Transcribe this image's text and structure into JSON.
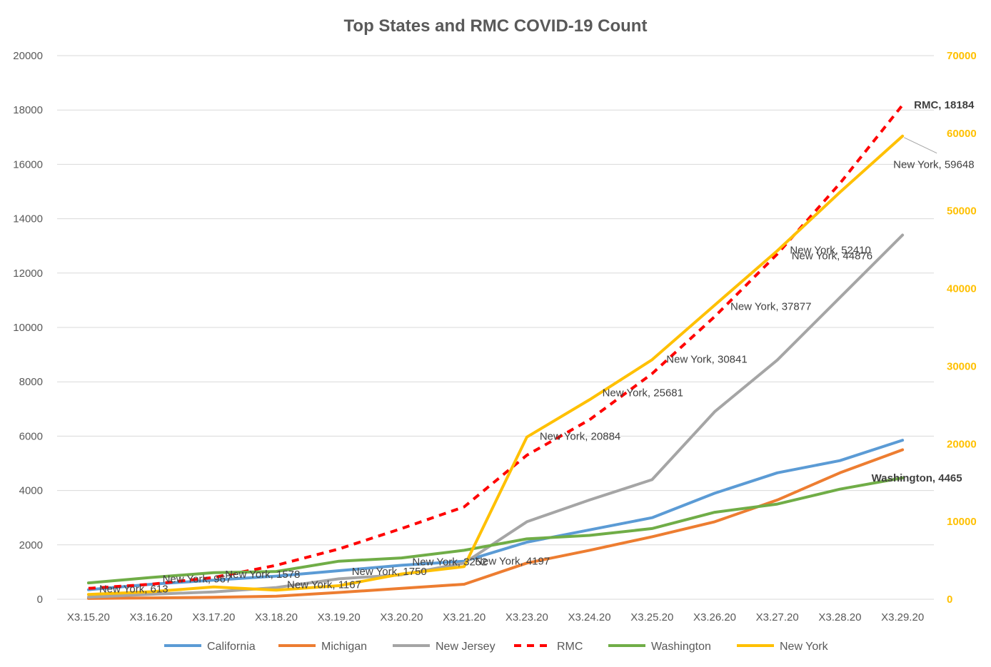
{
  "chart_data": {
    "type": "line",
    "title": "Top States and RMC COVID-19 Count",
    "categories": [
      "X3.15.20",
      "X3.16.20",
      "X3.17.20",
      "X3.18.20",
      "X3.19.20",
      "X3.20.20",
      "X3.21.20",
      "X3.23.20",
      "X3.24.20",
      "X3.25.20",
      "X3.26.20",
      "X3.27.20",
      "X3.28.20",
      "X3.29.20"
    ],
    "y_left": {
      "min": 0,
      "max": 20000,
      "step": 2000,
      "ticks": [
        "0",
        "2000",
        "4000",
        "6000",
        "8000",
        "10000",
        "12000",
        "14000",
        "16000",
        "18000",
        "20000"
      ]
    },
    "y_right": {
      "min": 0,
      "max": 70000,
      "step": 10000,
      "ticks": [
        "0",
        "10000",
        "20000",
        "30000",
        "40000",
        "50000",
        "60000",
        "70000"
      ],
      "color": "#FFC000"
    },
    "grid": true,
    "legend_position": "bottom",
    "series": [
      {
        "name": "California",
        "color": "#5B9BD5",
        "dash": false,
        "axis": "left",
        "values": [
          350,
          550,
          700,
          850,
          1050,
          1250,
          1400,
          2100,
          2550,
          3000,
          3900,
          4650,
          5100,
          5850
        ]
      },
      {
        "name": "Michigan",
        "color": "#ED7D31",
        "dash": false,
        "axis": "left",
        "values": [
          30,
          50,
          70,
          110,
          250,
          400,
          550,
          1330,
          1800,
          2300,
          2850,
          3650,
          4650,
          5500
        ]
      },
      {
        "name": "New Jersey",
        "color": "#A5A5A5",
        "dash": false,
        "axis": "left",
        "values": [
          80,
          180,
          270,
          430,
          750,
          900,
          1330,
          2850,
          3650,
          4400,
          6900,
          8800,
          11100,
          13400
        ]
      },
      {
        "name": "RMC",
        "color": "#FF0000",
        "dash": true,
        "axis": "left",
        "values": [
          400,
          550,
          800,
          1250,
          1850,
          2600,
          3400,
          5300,
          6600,
          8300,
          10400,
          12700,
          15300,
          18184
        ]
      },
      {
        "name": "Washington",
        "color": "#70AD47",
        "dash": false,
        "axis": "left",
        "values": [
          600,
          800,
          980,
          1020,
          1400,
          1520,
          1800,
          2220,
          2350,
          2600,
          3200,
          3500,
          4050,
          4465
        ]
      },
      {
        "name": "New York",
        "color": "#FFC000",
        "dash": false,
        "axis": "right",
        "values": [
          613,
          967,
          1578,
          1167,
          1750,
          3252,
          4197,
          20884,
          25681,
          30841,
          37877,
          44876,
          52410,
          59648
        ]
      }
    ],
    "data_labels": [
      {
        "text": "New York, 613",
        "series": "New York",
        "index": 0
      },
      {
        "text": "New York, 967",
        "series": "New York",
        "index": 1
      },
      {
        "text": "New York, 1578",
        "series": "New York",
        "index": 2
      },
      {
        "text": "New York, 1167",
        "series": "New York",
        "index": 3
      },
      {
        "text": "New York, 1750",
        "series": "New York",
        "index": 4
      },
      {
        "text": "New York, 3252",
        "series": "New York",
        "index": 5
      },
      {
        "text": "New York, 4197",
        "series": "New York",
        "index": 6
      },
      {
        "text": "New York, 20884",
        "series": "New York",
        "index": 7
      },
      {
        "text": "New York, 25681",
        "series": "New York",
        "index": 8
      },
      {
        "text": "New York, 30841",
        "series": "New York",
        "index": 9
      },
      {
        "text": "New York, 37877",
        "series": "New York",
        "index": 10
      },
      {
        "text": "New York, 44876",
        "series": "New York",
        "index": 11
      },
      {
        "text": "New York, 52410",
        "series": "New York",
        "index": 12
      },
      {
        "text": "New York, 59648",
        "series": "New York",
        "index": 13
      },
      {
        "text": "RMC, 18184",
        "series": "RMC",
        "index": 13,
        "bold": true
      },
      {
        "text": "Washington, 4465",
        "series": "Washington",
        "index": 13,
        "bold": true
      }
    ]
  }
}
